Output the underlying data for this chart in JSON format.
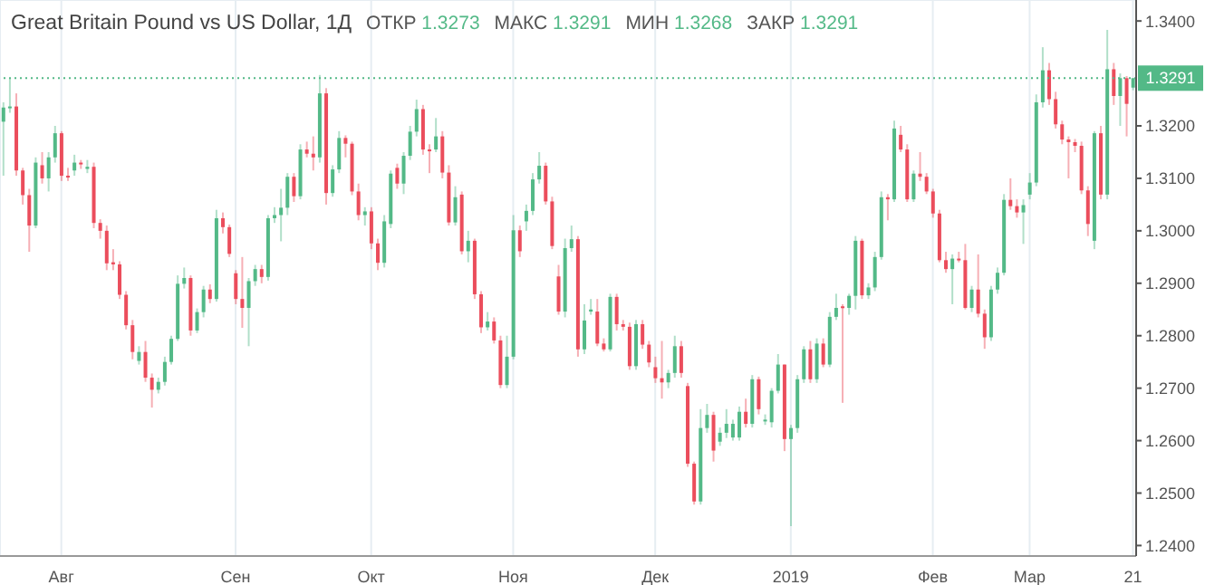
{
  "chart_data": {
    "type": "candlestick",
    "title": "Great Britain Pound vs US Dollar, 1Д",
    "annotations": [
      "ОТКР 1.3273",
      "МАКС 1.3291",
      "МИН 1.3268",
      "ЗАКР 1.3291"
    ],
    "categories": [
      null,
      null,
      null,
      null,
      null,
      null,
      null,
      null,
      null,
      "Авг",
      null,
      null,
      null,
      null,
      null,
      null,
      null,
      null,
      null,
      null,
      null,
      null,
      null,
      null,
      null,
      null,
      null,
      null,
      null,
      null,
      null,
      null,
      null,
      null,
      null,
      null,
      "Сен",
      null,
      null,
      null,
      null,
      null,
      null,
      null,
      null,
      null,
      null,
      null,
      null,
      null,
      null,
      null,
      null,
      null,
      null,
      null,
      null,
      "Окт",
      null,
      null,
      null,
      null,
      null,
      null,
      null,
      null,
      null,
      null,
      null,
      null,
      null,
      null,
      null,
      null,
      null,
      null,
      null,
      null,
      null,
      "Ноя",
      null,
      null,
      null,
      null,
      null,
      null,
      null,
      null,
      null,
      null,
      null,
      null,
      null,
      null,
      null,
      null,
      null,
      null,
      null,
      null,
      null,
      "Дек",
      null,
      null,
      null,
      null,
      null,
      null,
      null,
      null,
      null,
      null,
      null,
      null,
      null,
      null,
      null,
      null,
      null,
      null,
      null,
      null,
      "2019",
      null,
      null,
      null,
      null,
      null,
      null,
      null,
      null,
      null,
      null,
      null,
      null,
      null,
      null,
      null,
      null,
      null,
      null,
      null,
      null,
      null,
      "Фев",
      null,
      null,
      null,
      null,
      null,
      null,
      null,
      null,
      null,
      null,
      null,
      null,
      null,
      null,
      "Мар",
      null,
      null,
      null,
      null,
      null,
      null,
      null,
      null,
      null,
      null,
      null,
      null,
      null,
      null,
      null,
      "21"
    ],
    "ohlc": [
      [
        1.3208,
        1.3245,
        1.3105,
        1.3235
      ],
      [
        1.3235,
        1.3291,
        1.3225,
        1.3237
      ],
      [
        1.3237,
        1.3262,
        1.3105,
        1.3115
      ],
      [
        1.3115,
        1.312,
        1.305,
        1.3068
      ],
      [
        1.3068,
        1.308,
        1.296,
        1.301
      ],
      [
        1.301,
        1.314,
        1.3005,
        1.313
      ],
      [
        1.3125,
        1.315,
        1.309,
        1.31
      ],
      [
        1.31,
        1.315,
        1.3075,
        1.314
      ],
      [
        1.314,
        1.32,
        1.313,
        1.3186
      ],
      [
        1.3186,
        1.319,
        1.3095,
        1.3105
      ],
      [
        1.3105,
        1.312,
        1.3095,
        1.3102
      ],
      [
        1.3115,
        1.3145,
        1.3105,
        1.313
      ],
      [
        1.313,
        1.3135,
        1.3118,
        1.3127
      ],
      [
        1.3118,
        1.3135,
        1.311,
        1.3122
      ],
      [
        1.3122,
        1.313,
        1.3005,
        1.3015
      ],
      [
        1.3015,
        1.3022,
        1.2985,
        1.3
      ],
      [
        1.3,
        1.301,
        1.2925,
        1.2938
      ],
      [
        1.294,
        1.2965,
        1.2925,
        1.2936
      ],
      [
        1.2936,
        1.2942,
        1.287,
        1.2878
      ],
      [
        1.2878,
        1.2885,
        1.2812,
        1.282
      ],
      [
        1.282,
        1.283,
        1.2755,
        1.2769
      ],
      [
        1.2752,
        1.278,
        1.2745,
        1.2769
      ],
      [
        1.2769,
        1.279,
        1.2712,
        1.272
      ],
      [
        1.272,
        1.2728,
        1.2663,
        1.2697
      ],
      [
        1.2697,
        1.272,
        1.269,
        1.2712
      ],
      [
        1.2712,
        1.276,
        1.2705,
        1.275
      ],
      [
        1.275,
        1.28,
        1.2745,
        1.2794
      ],
      [
        1.2794,
        1.2915,
        1.279,
        1.2899
      ],
      [
        1.2899,
        1.293,
        1.289,
        1.291
      ],
      [
        1.291,
        1.2915,
        1.28,
        1.281
      ],
      [
        1.281,
        1.2852,
        1.2805,
        1.2845
      ],
      [
        1.2845,
        1.2895,
        1.2835,
        1.2888
      ],
      [
        1.2888,
        1.2898,
        1.2862,
        1.287
      ],
      [
        1.287,
        1.304,
        1.2865,
        1.3024
      ],
      [
        1.3024,
        1.3035,
        1.2995,
        1.3007
      ],
      [
        1.3007,
        1.3012,
        1.295,
        1.2956
      ],
      [
        1.2919,
        1.2925,
        1.286,
        1.287
      ],
      [
        1.287,
        1.295,
        1.2815,
        1.2853
      ],
      [
        1.2853,
        1.291,
        1.278,
        1.2904
      ],
      [
        1.2904,
        1.2935,
        1.2895,
        1.2927
      ],
      [
        1.2927,
        1.2935,
        1.29,
        1.2912
      ],
      [
        1.2912,
        1.303,
        1.2905,
        1.3024
      ],
      [
        1.3024,
        1.3045,
        1.3015,
        1.303
      ],
      [
        1.303,
        1.308,
        1.298,
        1.3044
      ],
      [
        1.3044,
        1.311,
        1.303,
        1.3103
      ],
      [
        1.3103,
        1.311,
        1.3055,
        1.3066
      ],
      [
        1.3066,
        1.3165,
        1.306,
        1.3155
      ],
      [
        1.3155,
        1.317,
        1.314,
        1.3147
      ],
      [
        1.3147,
        1.318,
        1.3115,
        1.314
      ],
      [
        1.314,
        1.3297,
        1.313,
        1.3262
      ],
      [
        1.3262,
        1.3272,
        1.305,
        1.3072
      ],
      [
        1.3072,
        1.3125,
        1.3065,
        1.3117
      ],
      [
        1.3117,
        1.319,
        1.311,
        1.3177
      ],
      [
        1.3177,
        1.3182,
        1.314,
        1.3166
      ],
      [
        1.3166,
        1.317,
        1.3068,
        1.3075
      ],
      [
        1.3075,
        1.309,
        1.302,
        1.303
      ],
      [
        1.303,
        1.3045,
        1.301,
        1.3037
      ],
      [
        1.3037,
        1.3045,
        1.2965,
        1.2976
      ],
      [
        1.2976,
        1.2985,
        1.2925,
        1.2939
      ],
      [
        1.2939,
        1.303,
        1.293,
        1.3018
      ],
      [
        1.3013,
        1.3115,
        1.3005,
        1.3109
      ],
      [
        1.312,
        1.3128,
        1.308,
        1.309
      ],
      [
        1.309,
        1.315,
        1.307,
        1.3143
      ],
      [
        1.3143,
        1.32,
        1.3135,
        1.3189
      ],
      [
        1.3189,
        1.325,
        1.318,
        1.3232
      ],
      [
        1.3232,
        1.324,
        1.3145,
        1.3155
      ],
      [
        1.3155,
        1.3165,
        1.311,
        1.3152
      ],
      [
        1.3155,
        1.3215,
        1.315,
        1.318
      ],
      [
        1.318,
        1.319,
        1.31,
        1.3111
      ],
      [
        1.3111,
        1.3125,
        1.301,
        1.3016
      ],
      [
        1.3016,
        1.3085,
        1.301,
        1.3064
      ],
      [
        1.3069,
        1.3075,
        1.2955,
        1.2961
      ],
      [
        1.2961,
        1.3,
        1.294,
        1.2981
      ],
      [
        1.2981,
        1.2985,
        1.287,
        1.2879
      ],
      [
        1.2879,
        1.2885,
        1.2805,
        1.2816
      ],
      [
        1.2816,
        1.2845,
        1.281,
        1.2827
      ],
      [
        1.2827,
        1.2835,
        1.2785,
        1.2791
      ],
      [
        1.2791,
        1.28,
        1.27,
        1.2706
      ],
      [
        1.2706,
        1.28,
        1.27,
        1.276
      ],
      [
        1.276,
        1.303,
        1.2755,
        1.3001
      ],
      [
        1.3001,
        1.301,
        1.295,
        1.2961
      ],
      [
        1.3018,
        1.305,
        1.3,
        1.3038
      ],
      [
        1.3038,
        1.311,
        1.303,
        1.3098
      ],
      [
        1.3098,
        1.315,
        1.309,
        1.3124
      ],
      [
        1.3124,
        1.313,
        1.305,
        1.3056
      ],
      [
        1.3056,
        1.3065,
        1.2965,
        1.2971
      ],
      [
        1.2913,
        1.2935,
        1.284,
        1.2846
      ],
      [
        1.2846,
        1.2985,
        1.2835,
        1.2967
      ],
      [
        1.2967,
        1.301,
        1.296,
        1.2984
      ],
      [
        1.2984,
        1.299,
        1.276,
        1.2774
      ],
      [
        1.2774,
        1.286,
        1.2765,
        1.2829
      ],
      [
        1.2846,
        1.287,
        1.284,
        1.285
      ],
      [
        1.2846,
        1.287,
        1.278,
        1.2785
      ],
      [
        1.2785,
        1.2795,
        1.277,
        1.2774
      ],
      [
        1.2774,
        1.288,
        1.277,
        1.2874
      ],
      [
        1.2874,
        1.288,
        1.281,
        1.2822
      ],
      [
        1.2822,
        1.283,
        1.281,
        1.2817
      ],
      [
        1.2817,
        1.2825,
        1.2735,
        1.2742
      ],
      [
        1.2742,
        1.283,
        1.2735,
        1.2822
      ],
      [
        1.2822,
        1.283,
        1.2775,
        1.2783
      ],
      [
        1.2783,
        1.279,
        1.274,
        1.2749
      ],
      [
        1.274,
        1.276,
        1.271,
        1.2719
      ],
      [
        1.2719,
        1.279,
        1.268,
        1.2711
      ],
      [
        1.2711,
        1.2735,
        1.27,
        1.2729
      ],
      [
        1.2729,
        1.28,
        1.272,
        1.278
      ],
      [
        1.278,
        1.279,
        1.272,
        1.2729
      ],
      [
        1.2704,
        1.271,
        1.255,
        1.2556
      ],
      [
        1.2556,
        1.256,
        1.2478,
        1.2484
      ],
      [
        1.2484,
        1.266,
        1.2478,
        1.2624
      ],
      [
        1.2624,
        1.267,
        1.2615,
        1.2649
      ],
      [
        1.2649,
        1.2655,
        1.256,
        1.2581
      ],
      [
        1.2598,
        1.2625,
        1.259,
        1.2615
      ],
      [
        1.2615,
        1.266,
        1.2605,
        1.2632
      ],
      [
        1.2606,
        1.264,
        1.26,
        1.2632
      ],
      [
        1.2606,
        1.2665,
        1.26,
        1.2655
      ],
      [
        1.2655,
        1.268,
        1.2625,
        1.2632
      ],
      [
        1.2632,
        1.2725,
        1.2625,
        1.2717
      ],
      [
        1.2717,
        1.2722,
        1.265,
        1.266
      ],
      [
        1.2638,
        1.265,
        1.263,
        1.264
      ],
      [
        1.2635,
        1.27,
        1.2625,
        1.2695
      ],
      [
        1.2695,
        1.2765,
        1.269,
        1.2745
      ],
      [
        1.2745,
        1.2745,
        1.258,
        1.2603
      ],
      [
        1.2603,
        1.263,
        1.2437,
        1.2624
      ],
      [
        1.2624,
        1.2725,
        1.2615,
        1.2717
      ],
      [
        1.2717,
        1.278,
        1.271,
        1.2774
      ],
      [
        1.2774,
        1.279,
        1.271,
        1.2717
      ],
      [
        1.2717,
        1.2795,
        1.271,
        1.2785
      ],
      [
        1.2785,
        1.2795,
        1.274,
        1.2745
      ],
      [
        1.2745,
        1.2845,
        1.274,
        1.2836
      ],
      [
        1.2836,
        1.288,
        1.283,
        1.2853
      ],
      [
        1.2856,
        1.286,
        1.2672,
        1.2853
      ],
      [
        1.2853,
        1.288,
        1.284,
        1.2876
      ],
      [
        1.2876,
        1.299,
        1.285,
        1.2981
      ],
      [
        1.2981,
        1.2985,
        1.287,
        1.2877
      ],
      [
        1.2877,
        1.29,
        1.287,
        1.2892
      ],
      [
        1.2892,
        1.296,
        1.2885,
        1.295
      ],
      [
        1.295,
        1.3075,
        1.2945,
        1.3064
      ],
      [
        1.3064,
        1.307,
        1.302,
        1.306
      ],
      [
        1.306,
        1.321,
        1.3055,
        1.3195
      ],
      [
        1.3183,
        1.32,
        1.315,
        1.3155
      ],
      [
        1.3155,
        1.3165,
        1.3055,
        1.306
      ],
      [
        1.306,
        1.3115,
        1.3055,
        1.3109
      ],
      [
        1.3109,
        1.315,
        1.3095,
        1.3103
      ],
      [
        1.3103,
        1.311,
        1.307,
        1.3075
      ],
      [
        1.3075,
        1.308,
        1.3025,
        1.3033
      ],
      [
        1.3033,
        1.304,
        1.294,
        1.2944
      ],
      [
        1.2944,
        1.296,
        1.292,
        1.2927
      ],
      [
        1.2927,
        1.2955,
        1.286,
        1.2947
      ],
      [
        1.2947,
        1.296,
        1.294,
        1.2944
      ],
      [
        1.2944,
        1.2975,
        1.285,
        1.2853
      ],
      [
        1.2853,
        1.2895,
        1.2845,
        1.2888
      ],
      [
        1.2888,
        1.2955,
        1.2835,
        1.2842
      ],
      [
        1.2842,
        1.285,
        1.2775,
        1.2797
      ],
      [
        1.2797,
        1.2895,
        1.279,
        1.2888
      ],
      [
        1.2888,
        1.293,
        1.288,
        1.292
      ],
      [
        1.292,
        1.307,
        1.2915,
        1.3059
      ],
      [
        1.3059,
        1.31,
        1.304,
        1.3047
      ],
      [
        1.3047,
        1.306,
        1.3025,
        1.3035
      ],
      [
        1.3035,
        1.306,
        1.2975,
        1.3049
      ],
      [
        1.3069,
        1.311,
        1.306,
        1.3092
      ],
      [
        1.3092,
        1.326,
        1.3085,
        1.3245
      ],
      [
        1.3245,
        1.335,
        1.3235,
        1.3306
      ],
      [
        1.3306,
        1.332,
        1.324,
        1.3251
      ],
      [
        1.3251,
        1.3265,
        1.3195,
        1.3203
      ],
      [
        1.3203,
        1.321,
        1.3165,
        1.3174
      ],
      [
        1.3174,
        1.318,
        1.31,
        1.3169
      ],
      [
        1.3169,
        1.3175,
        1.315,
        1.3162
      ],
      [
        1.3162,
        1.317,
        1.307,
        1.3077
      ],
      [
        1.3077,
        1.3085,
        1.299,
        1.3013
      ],
      [
        1.2981,
        1.319,
        1.2965,
        1.3186
      ],
      [
        1.3186,
        1.32,
        1.306,
        1.3069
      ],
      [
        1.3069,
        1.3383,
        1.306,
        1.3308
      ],
      [
        1.3308,
        1.332,
        1.324,
        1.3257
      ],
      [
        1.3257,
        1.33,
        1.32,
        1.3291
      ],
      [
        1.3291,
        1.3295,
        1.318,
        1.3242
      ],
      [
        1.3273,
        1.3291,
        1.3268,
        1.3291
      ]
    ],
    "colors": [
      "#53b987",
      "#53b987",
      "#eb4d5c",
      "#eb4d5c",
      "#eb4d5c",
      "#53b987",
      "#eb4d5c",
      "#53b987",
      "#53b987",
      "#eb4d5c",
      "#eb4d5c",
      "#53b987",
      "#eb4d5c",
      "#53b987",
      "#eb4d5c",
      "#eb4d5c",
      "#eb4d5c",
      "#eb4d5c",
      "#eb4d5c",
      "#eb4d5c",
      "#eb4d5c",
      "#53b987",
      "#eb4d5c",
      "#eb4d5c",
      "#53b987",
      "#53b987",
      "#53b987",
      "#53b987",
      "#53b987",
      "#eb4d5c",
      "#53b987",
      "#53b987",
      "#eb4d5c",
      "#53b987",
      "#eb4d5c",
      "#eb4d5c",
      "#eb4d5c",
      "#eb4d5c",
      "#53b987",
      "#53b987",
      "#eb4d5c",
      "#53b987",
      "#53b987",
      "#53b987",
      "#53b987",
      "#eb4d5c",
      "#53b987",
      "#eb4d5c",
      "#eb4d5c",
      "#53b987",
      "#eb4d5c",
      "#53b987",
      "#53b987",
      "#eb4d5c",
      "#eb4d5c",
      "#eb4d5c",
      "#53b987",
      "#eb4d5c",
      "#eb4d5c",
      "#53b987",
      "#53b987",
      "#eb4d5c",
      "#53b987",
      "#53b987",
      "#53b987",
      "#eb4d5c",
      "#eb4d5c",
      "#53b987",
      "#eb4d5c",
      "#eb4d5c",
      "#53b987",
      "#eb4d5c",
      "#53b987",
      "#eb4d5c",
      "#eb4d5c",
      "#53b987",
      "#eb4d5c",
      "#eb4d5c",
      "#53b987",
      "#53b987",
      "#eb4d5c",
      "#53b987",
      "#53b987",
      "#53b987",
      "#eb4d5c",
      "#eb4d5c",
      "#eb4d5c",
      "#53b987",
      "#53b987",
      "#eb4d5c",
      "#53b987",
      "#53b987",
      "#eb4d5c",
      "#eb4d5c",
      "#53b987",
      "#eb4d5c",
      "#eb4d5c",
      "#eb4d5c",
      "#53b987",
      "#eb4d5c",
      "#eb4d5c",
      "#eb4d5c",
      "#eb4d5c",
      "#53b987",
      "#53b987",
      "#eb4d5c",
      "#eb4d5c",
      "#eb4d5c",
      "#53b987",
      "#53b987",
      "#eb4d5c",
      "#53b987",
      "#53b987",
      "#53b987",
      "#53b987",
      "#eb4d5c",
      "#53b987",
      "#eb4d5c",
      "#53b987",
      "#53b987",
      "#53b987",
      "#eb4d5c",
      "#53b987",
      "#53b987",
      "#53b987",
      "#eb4d5c",
      "#53b987",
      "#eb4d5c",
      "#53b987",
      "#53b987",
      "#eb4d5c",
      "#53b987",
      "#53b987",
      "#eb4d5c",
      "#53b987",
      "#53b987",
      "#53b987",
      "#eb4d5c",
      "#53b987",
      "#eb4d5c",
      "#eb4d5c",
      "#53b987",
      "#eb4d5c",
      "#eb4d5c",
      "#eb4d5c",
      "#eb4d5c",
      "#eb4d5c",
      "#53b987",
      "#eb4d5c",
      "#eb4d5c",
      "#53b987",
      "#eb4d5c",
      "#eb4d5c",
      "#53b987",
      "#53b987",
      "#53b987",
      "#eb4d5c",
      "#eb4d5c",
      "#53b987",
      "#53b987",
      "#53b987",
      "#53b987",
      "#eb4d5c",
      "#eb4d5c",
      "#eb4d5c",
      "#eb4d5c",
      "#eb4d5c",
      "#eb4d5c",
      "#eb4d5c",
      "#53b987",
      "#eb4d5c",
      "#53b987",
      "#eb4d5c",
      "#53b987",
      "#eb4d5c",
      "#53b987"
    ],
    "ylim": [
      1.238,
      1.344
    ],
    "yticks": [
      {
        "value": 1.24,
        "label": "1.2400"
      },
      {
        "value": 1.25,
        "label": "1.2500"
      },
      {
        "value": 1.26,
        "label": "1.2600"
      },
      {
        "value": 1.27,
        "label": "1.2700"
      },
      {
        "value": 1.28,
        "label": "1.2800"
      },
      {
        "value": 1.29,
        "label": "1.2900"
      },
      {
        "value": 1.3,
        "label": "1.3000"
      },
      {
        "value": 1.31,
        "label": "1.3100"
      },
      {
        "value": 1.32,
        "label": "1.3200"
      },
      {
        "value": 1.34,
        "label": "1.3400"
      }
    ],
    "ref_lines": [
      {
        "axis": "y",
        "value": 1.3291,
        "label": "1.3291",
        "color": "#53b987",
        "line_style": "dotted"
      }
    ],
    "grid": true
  }
}
